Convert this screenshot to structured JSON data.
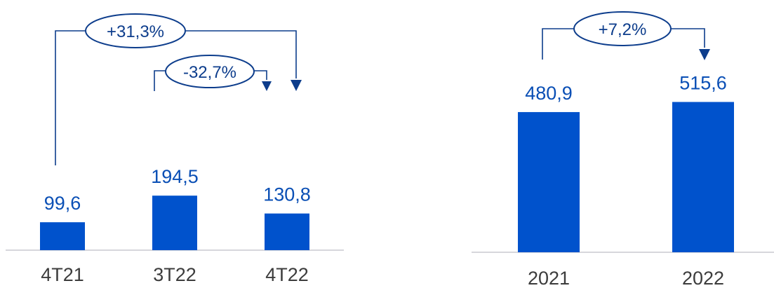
{
  "colors": {
    "bar": "#0052cc",
    "value_label": "#0a4fb5",
    "annotation": "#0d3d8c",
    "category_label": "#3c3c3c",
    "baseline": "#c8c8d0"
  },
  "chart_data": [
    {
      "type": "bar",
      "categories": [
        "4T21",
        "3T22",
        "4T22"
      ],
      "values": [
        99.6,
        194.5,
        130.8
      ],
      "value_labels": [
        "99,6",
        "194,5",
        "130,8"
      ],
      "annotations": [
        {
          "from": "4T21",
          "to": "4T22",
          "label": "+31,3%"
        },
        {
          "from": "3T22",
          "to": "4T22",
          "label": "-32,7%"
        }
      ]
    },
    {
      "type": "bar",
      "categories": [
        "2021",
        "2022"
      ],
      "values": [
        480.9,
        515.6
      ],
      "value_labels": [
        "480,9",
        "515,6"
      ],
      "annotations": [
        {
          "from": "2021",
          "to": "2022",
          "label": "+7,2%"
        }
      ]
    }
  ]
}
